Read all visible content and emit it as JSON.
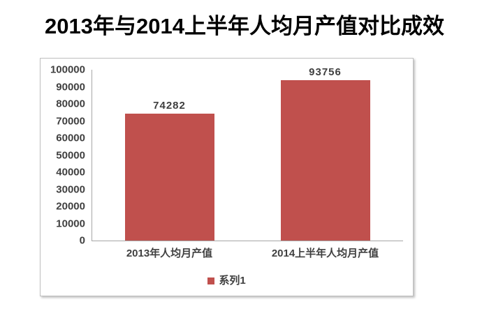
{
  "title": "2013年与2014上半年人均月产值对比成效",
  "legend": {
    "series1_label": "系列1"
  },
  "colors": {
    "bar": "#c0504d",
    "axis": "#a6a6a6",
    "tick_label": "#404040",
    "data_label": "#3f3f3f",
    "frame_border": "#bfbfbf"
  },
  "chart_data": {
    "type": "bar",
    "categories": [
      "2013年人均月产值",
      "2014上半年人均月产值"
    ],
    "series": [
      {
        "name": "系列1",
        "values": [
          74282,
          93756
        ]
      }
    ],
    "data_labels": [
      "74282",
      "93756"
    ],
    "title": "2013年与2014上半年人均月产值对比成效",
    "xlabel": "",
    "ylabel": "",
    "ylim": [
      0,
      100000
    ],
    "ytick_step": 10000,
    "grid": false,
    "legend_position": "bottom"
  }
}
